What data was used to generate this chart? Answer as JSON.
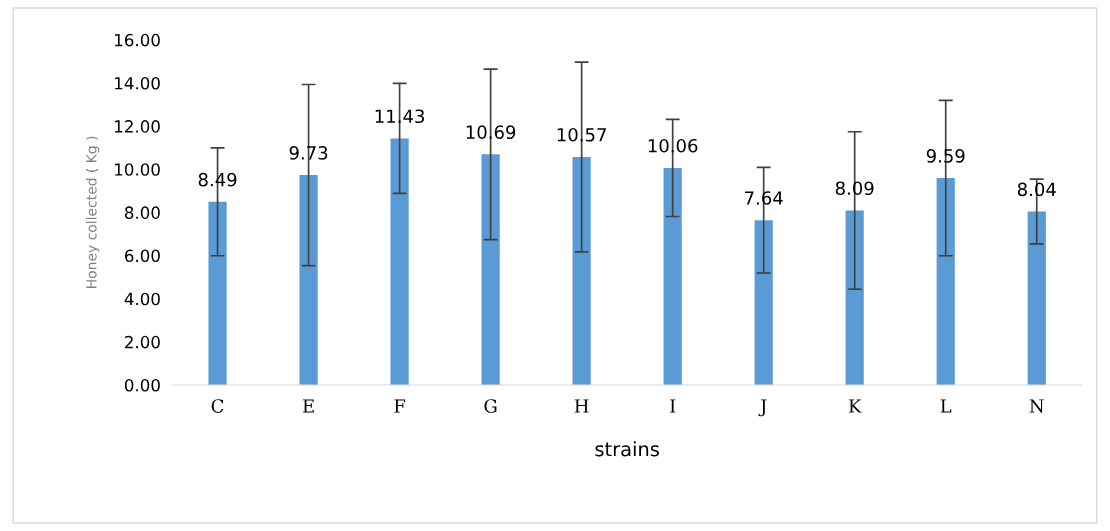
{
  "chart_data": {
    "type": "bar",
    "xlabel": "strains",
    "ylabel": "Honey collected ( Kg )",
    "categories": [
      "C",
      "E",
      "F",
      "G",
      "H",
      "I",
      "J",
      "K",
      "L",
      "N"
    ],
    "values": [
      8.49,
      9.73,
      11.43,
      10.69,
      10.57,
      10.06,
      7.64,
      8.09,
      9.59,
      8.04
    ],
    "errors": [
      2.5,
      4.2,
      2.55,
      3.95,
      4.4,
      2.25,
      2.45,
      3.65,
      3.6,
      1.5
    ],
    "color": "#5b9bd5",
    "ylim": [
      0,
      16
    ],
    "yticks": [
      {
        "value": 0,
        "label": "0.00"
      },
      {
        "value": 2,
        "label": "2.00"
      },
      {
        "value": 4,
        "label": "4.00"
      },
      {
        "value": 6,
        "label": "6.00"
      },
      {
        "value": 8,
        "label": "8.00"
      },
      {
        "value": 10,
        "label": "10.00"
      },
      {
        "value": 12,
        "label": "12.00"
      },
      {
        "value": 14,
        "label": "14.00"
      },
      {
        "value": 16,
        "label": "16.00"
      }
    ],
    "data_labels": true,
    "grid": false,
    "legend": false
  }
}
